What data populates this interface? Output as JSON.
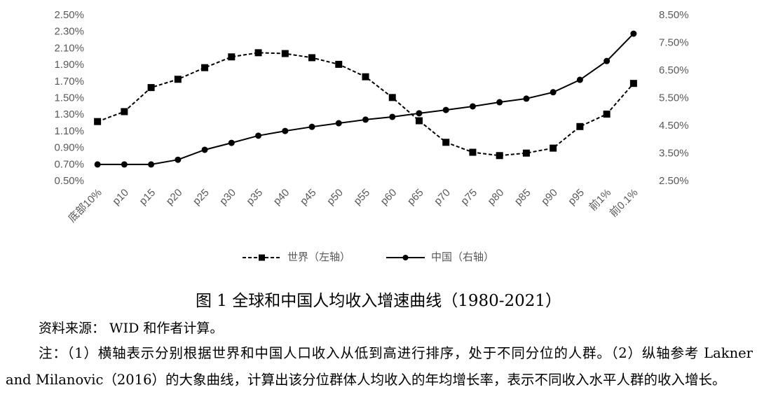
{
  "chart_data": {
    "type": "line",
    "categories": [
      "底部10%",
      "p10",
      "p15",
      "p20",
      "p25",
      "p30",
      "p35",
      "p40",
      "p45",
      "p50",
      "p55",
      "p60",
      "p65",
      "p70",
      "p75",
      "p80",
      "p85",
      "p90",
      "p95",
      "前1%",
      "前0.1%"
    ],
    "series": [
      {
        "name": "世界（左轴）",
        "color": "#000000",
        "dash": true,
        "marker": "square",
        "values": [
          1.22,
          1.34,
          1.63,
          1.73,
          1.87,
          2.0,
          2.05,
          2.04,
          1.99,
          1.91,
          1.76,
          1.51,
          1.23,
          0.97,
          0.85,
          0.81,
          0.84,
          0.9,
          1.16,
          1.31,
          1.68
        ]
      },
      {
        "name": "中国（右轴）",
        "color": "#000000",
        "dash": false,
        "marker": "circle",
        "axis": "y2",
        "values": [
          3.11,
          3.11,
          3.11,
          3.28,
          3.64,
          3.89,
          4.15,
          4.32,
          4.47,
          4.6,
          4.73,
          4.83,
          4.96,
          5.08,
          5.21,
          5.36,
          5.49,
          5.72,
          6.17,
          6.85,
          7.84
        ]
      }
    ],
    "ylim": [
      0.5,
      2.5
    ],
    "yticks": [
      {
        "value": 0.5,
        "label": "0.50%"
      },
      {
        "value": 0.7,
        "label": "0.70%"
      },
      {
        "value": 0.9,
        "label": "0.90%"
      },
      {
        "value": 1.1,
        "label": "1.10%"
      },
      {
        "value": 1.3,
        "label": "1.30%"
      },
      {
        "value": 1.5,
        "label": "1.50%"
      },
      {
        "value": 1.7,
        "label": "1.70%"
      },
      {
        "value": 1.9,
        "label": "1.90%"
      },
      {
        "value": 2.1,
        "label": "2.10%"
      },
      {
        "value": 2.3,
        "label": "2.30%"
      },
      {
        "value": 2.5,
        "label": "2.50%"
      }
    ],
    "y2lim": [
      2.5,
      8.5
    ],
    "y2ticks": [
      {
        "value": 2.5,
        "label": "2.50%"
      },
      {
        "value": 3.5,
        "label": "3.50%"
      },
      {
        "value": 4.5,
        "label": "4.50%"
      },
      {
        "value": 5.5,
        "label": "5.50%"
      },
      {
        "value": 6.5,
        "label": "6.50%"
      },
      {
        "value": 7.5,
        "label": "7.50%"
      },
      {
        "value": 8.5,
        "label": "8.50%"
      }
    ],
    "grid": false,
    "legend": "bottom"
  },
  "caption": "图 1  全球和中国人均收入增速曲线（1980-2021）",
  "source": "资料来源： WID 和作者计算。",
  "note": "注：（1）横轴表示分别根据世界和中国人口收入从低到高进行排序，处于不同分位的人群。（2）纵轴参考 Lakner and Milanovic（2016）的大象曲线，计算出该分位群体人均收入的年均增长率，表示不同收入水平人群的收入增长。"
}
